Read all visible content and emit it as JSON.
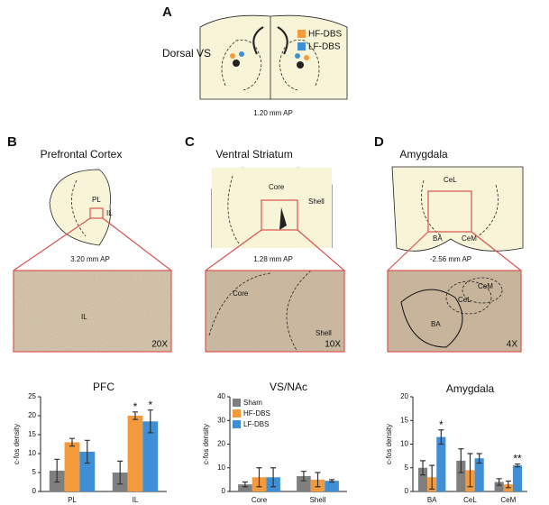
{
  "figure": {
    "panel_a": {
      "label": "A",
      "region": "Dorsal VS",
      "legend": [
        "HF-DBS",
        "LF-DBS"
      ],
      "ap": "1.20 mm AP"
    },
    "panel_b": {
      "label": "B",
      "title": "Prefrontal Cortex",
      "sketch_labels": [
        "PL",
        "IL"
      ],
      "ap": "3.20 mm AP",
      "micro_labels": [
        "IL"
      ],
      "magnification": "20X"
    },
    "panel_c": {
      "label": "C",
      "title": "Ventral Striatum",
      "sketch_labels": [
        "Core",
        "Shell"
      ],
      "ap": "1.28 mm AP",
      "micro_labels": [
        "Core",
        "Shell"
      ],
      "magnification": "10X"
    },
    "panel_d": {
      "label": "D",
      "title": "Amygdala",
      "sketch_labels": [
        "CeL",
        "BA",
        "CeM"
      ],
      "ap": "-2.56 mm AP",
      "micro_labels": [
        "CeM",
        "CeL",
        "BA"
      ],
      "magnification": "4X"
    }
  },
  "chart_data": [
    {
      "type": "bar",
      "title": "PFC",
      "ylabel": "c-fos density",
      "categories": [
        "PL",
        "IL"
      ],
      "series": [
        {
          "color": "#7f7f7f",
          "values": [
            5.5,
            5
          ],
          "errors": [
            3,
            3
          ]
        },
        {
          "color": "#f39a3c",
          "values": [
            13,
            20
          ],
          "errors": [
            1,
            1
          ]
        },
        {
          "color": "#3f8fd6",
          "values": [
            10.5,
            18.5
          ],
          "errors": [
            3,
            3
          ]
        }
      ],
      "annotations": [
        {
          "series": 1,
          "category": 1,
          "text": "*"
        },
        {
          "series": 2,
          "category": 1,
          "text": "*"
        }
      ],
      "ylim": [
        0,
        25
      ],
      "yticks": [
        0,
        5,
        10,
        15,
        20,
        25
      ]
    },
    {
      "type": "bar",
      "title": "VS/NAc",
      "ylabel": "c-fos density",
      "categories": [
        "Core",
        "Shell"
      ],
      "series": [
        {
          "name": "Sham",
          "color": "#7f7f7f",
          "values": [
            3,
            6.5
          ],
          "errors": [
            1,
            2
          ]
        },
        {
          "name": "HF-DBS",
          "color": "#f39a3c",
          "values": [
            6,
            5
          ],
          "errors": [
            4,
            3
          ]
        },
        {
          "name": "LF-DBS",
          "color": "#3f8fd6",
          "values": [
            6,
            4.5
          ],
          "errors": [
            4,
            0.5
          ]
        }
      ],
      "legend": "upper left",
      "ylim": [
        0,
        40
      ],
      "yticks": [
        0,
        10,
        20,
        30,
        40
      ]
    },
    {
      "type": "bar",
      "title": "Amygdala",
      "ylabel": "c-fos density",
      "categories": [
        "BA",
        "CeL",
        "CeM"
      ],
      "series": [
        {
          "color": "#7f7f7f",
          "values": [
            5,
            6.5,
            2
          ],
          "errors": [
            1.5,
            2.5,
            0.7
          ]
        },
        {
          "color": "#f39a3c",
          "values": [
            3,
            4.5,
            1.5
          ],
          "errors": [
            2.5,
            3.5,
            0.7
          ]
        },
        {
          "color": "#3f8fd6",
          "values": [
            11.5,
            7,
            5.5
          ],
          "errors": [
            1.5,
            1,
            0.3
          ]
        }
      ],
      "annotations": [
        {
          "series": 2,
          "category": 0,
          "text": "*"
        },
        {
          "series": 2,
          "category": 2,
          "text": "**"
        }
      ],
      "ylim": [
        0,
        20
      ],
      "yticks": [
        0,
        5,
        10,
        15,
        20
      ]
    }
  ]
}
